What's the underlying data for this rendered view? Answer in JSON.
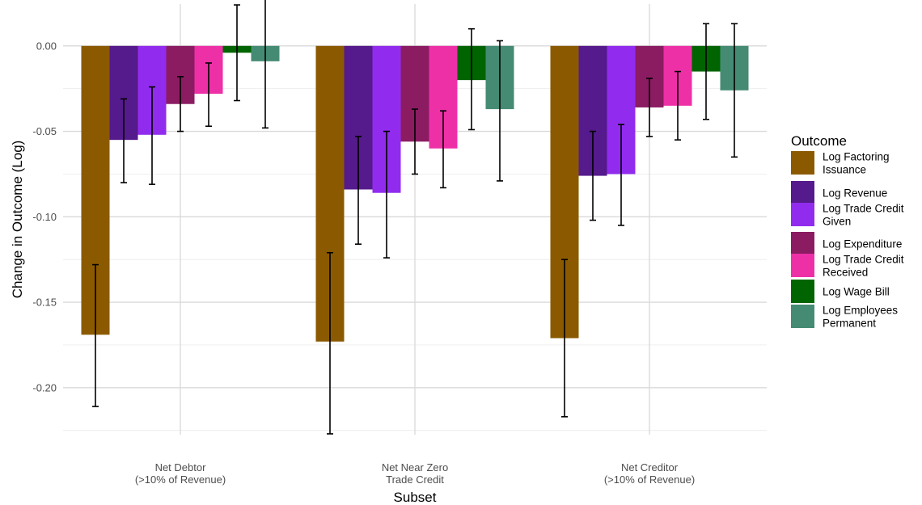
{
  "chart_data": {
    "type": "bar",
    "xlabel": "Subset",
    "ylabel": "Change in Outcome (Log)",
    "ylim": [
      -0.2275,
      0.0245
    ],
    "yticks": [
      0.0,
      -0.05,
      -0.1,
      -0.15,
      -0.2
    ],
    "ytick_labels": [
      "0.00",
      "-0.05",
      "-0.10",
      "-0.15",
      "-0.20"
    ],
    "grid": true,
    "legend_position": "right",
    "legend_title": "Outcome",
    "categories": [
      [
        "Net Debtor",
        "(>10% of Revenue)"
      ],
      [
        "Net Near Zero",
        "Trade Credit"
      ],
      [
        "Net Creditor",
        "(>10% of Revenue)"
      ]
    ],
    "series": [
      {
        "name": [
          "Log Factoring",
          "Issuance"
        ],
        "color": "#8B5A00",
        "values": [
          -0.169,
          -0.173,
          -0.171
        ],
        "ci_low": [
          -0.211,
          -0.227,
          -0.217
        ],
        "ci_high": [
          -0.128,
          -0.121,
          -0.125
        ]
      },
      {
        "name": [
          "Log Revenue"
        ],
        "color": "#551A8B",
        "values": [
          -0.055,
          -0.084,
          -0.076
        ],
        "ci_low": [
          -0.08,
          -0.116,
          -0.102
        ],
        "ci_high": [
          -0.031,
          -0.053,
          -0.05
        ]
      },
      {
        "name": [
          "Log Trade Credit",
          "Given"
        ],
        "color": "#912CEE",
        "values": [
          -0.052,
          -0.086,
          -0.075
        ],
        "ci_low": [
          -0.081,
          -0.124,
          -0.105
        ],
        "ci_high": [
          -0.024,
          -0.05,
          -0.046
        ]
      },
      {
        "name": [
          "Log Expenditure"
        ],
        "color": "#8B1C62",
        "values": [
          -0.034,
          -0.056,
          -0.036
        ],
        "ci_low": [
          -0.05,
          -0.075,
          -0.053
        ],
        "ci_high": [
          -0.018,
          -0.037,
          -0.019
        ]
      },
      {
        "name": [
          "Log Trade Credit",
          "Received"
        ],
        "color": "#EE30A7",
        "values": [
          -0.028,
          -0.06,
          -0.035
        ],
        "ci_low": [
          -0.047,
          -0.083,
          -0.055
        ],
        "ci_high": [
          -0.01,
          -0.038,
          -0.015
        ]
      },
      {
        "name": [
          "Log Wage Bill"
        ],
        "color": "#006400",
        "values": [
          -0.004,
          -0.02,
          -0.015
        ],
        "ci_low": [
          -0.032,
          -0.049,
          -0.043
        ],
        "ci_high": [
          0.024,
          0.01,
          0.013
        ]
      },
      {
        "name": [
          "Log Employees",
          "Permanent"
        ],
        "color": "#458B74",
        "values": [
          -0.009,
          -0.037,
          -0.026
        ],
        "ci_low": [
          -0.048,
          -0.079,
          -0.065
        ],
        "ci_high": [
          0.03,
          0.003,
          0.013
        ]
      }
    ]
  }
}
